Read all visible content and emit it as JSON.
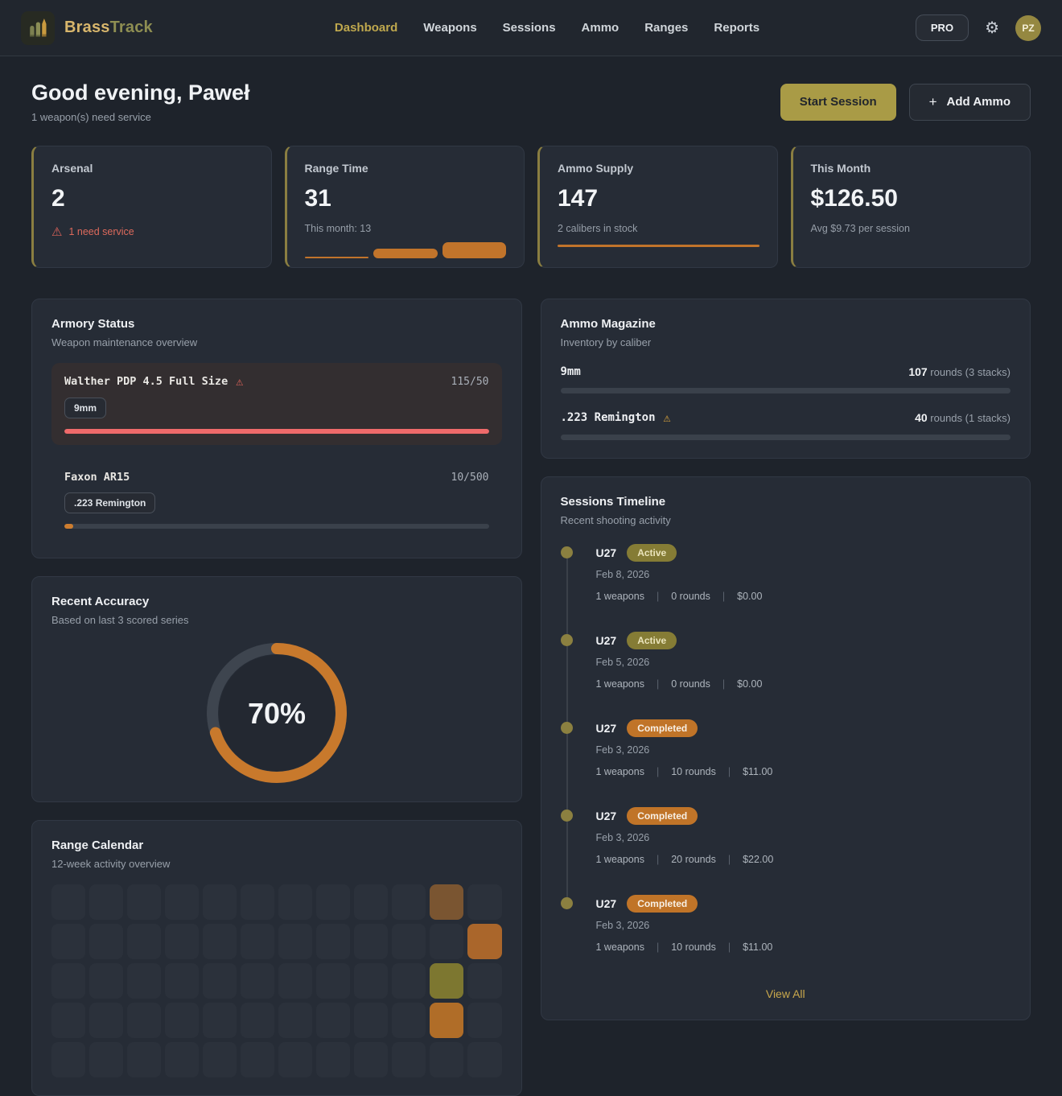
{
  "nav": {
    "brand_bold": "Brass",
    "brand_light": "Track",
    "items": [
      {
        "label": "Dashboard",
        "active": true
      },
      {
        "label": "Weapons",
        "active": false
      },
      {
        "label": "Sessions",
        "active": false
      },
      {
        "label": "Ammo",
        "active": false
      },
      {
        "label": "Ranges",
        "active": false
      },
      {
        "label": "Reports",
        "active": false
      }
    ],
    "pro_label": "PRO",
    "avatar_initials": "PZ"
  },
  "greeting": {
    "title": "Good evening, Paweł",
    "subtitle": "1 weapon(s) need service"
  },
  "actions": {
    "start_session": "Start Session",
    "add_ammo": "Add Ammo",
    "plus_icon": "+"
  },
  "stats": {
    "cards": [
      {
        "label": "Arsenal",
        "value": "2",
        "footer_type": "alert",
        "alert_text": "1 need service"
      },
      {
        "label": "Range Time",
        "value": "31",
        "subtitle": "This month: 13",
        "footer_type": "spark",
        "spark_values": [
          1,
          8,
          13
        ]
      },
      {
        "label": "Ammo Supply",
        "value": "147",
        "subtitle": "2 calibers in stock",
        "footer_type": "line"
      },
      {
        "label": "This Month",
        "value": "$126.50",
        "subtitle": "Avg $9.73 per session",
        "footer_type": "none"
      }
    ]
  },
  "armory": {
    "title": "Armory Status",
    "subtitle": "Weapon maintenance overview",
    "weapons": [
      {
        "name": "Walther PDP 4.5 Full Size",
        "warning": true,
        "ratio": "115/50",
        "caliber": "9mm",
        "fill_pct": 100,
        "fill_color": "#ef6a6a",
        "alert_bg": true
      },
      {
        "name": "Faxon AR15",
        "warning": false,
        "ratio": "10/500",
        "caliber": ".223 Remington",
        "fill_pct": 2,
        "fill_color": "#cd7d2f",
        "alert_bg": false
      }
    ]
  },
  "ammo": {
    "title": "Ammo Magazine",
    "subtitle": "Inventory by caliber",
    "rows": [
      {
        "caliber": "9mm",
        "warning": false,
        "count": "107",
        "count_rest": " rounds (3 stacks)"
      },
      {
        "caliber": ".223 Remington",
        "warning": true,
        "count": "40",
        "count_rest": " rounds (1 stacks)"
      }
    ]
  },
  "accuracy": {
    "title": "Recent Accuracy",
    "subtitle": "Based on last 3 scored series",
    "percent": 70,
    "percent_label": "70%"
  },
  "calendar": {
    "title": "Range Calendar",
    "subtitle": "12-week activity overview",
    "cols": 12,
    "rows": 5,
    "highlights": [
      {
        "row": 0,
        "col": 10,
        "color": "#7a5531"
      },
      {
        "row": 1,
        "col": 11,
        "color": "#aa662b"
      },
      {
        "row": 2,
        "col": 10,
        "color": "#7d7730"
      },
      {
        "row": 3,
        "col": 10,
        "color": "#b06d28"
      }
    ]
  },
  "timeline": {
    "title": "Sessions Timeline",
    "subtitle": "Recent shooting activity",
    "view_all": "View All",
    "sessions": [
      {
        "name": "U27",
        "status": "Active",
        "date": "Feb 8, 2026",
        "weapons": "1 weapons",
        "rounds": "0 rounds",
        "cost": "$0.00"
      },
      {
        "name": "U27",
        "status": "Active",
        "date": "Feb 5, 2026",
        "weapons": "1 weapons",
        "rounds": "0 rounds",
        "cost": "$0.00"
      },
      {
        "name": "U27",
        "status": "Completed",
        "date": "Feb 3, 2026",
        "weapons": "1 weapons",
        "rounds": "10 rounds",
        "cost": "$11.00"
      },
      {
        "name": "U27",
        "status": "Completed",
        "date": "Feb 3, 2026",
        "weapons": "1 weapons",
        "rounds": "20 rounds",
        "cost": "$22.00"
      },
      {
        "name": "U27",
        "status": "Completed",
        "date": "Feb 3, 2026",
        "weapons": "1 weapons",
        "rounds": "10 rounds",
        "cost": "$11.00"
      }
    ]
  },
  "colors": {
    "accent_gold": "#a99b46",
    "accent_orange": "#c1742b",
    "alert_red": "#e0645a",
    "warn_amber": "#d9a33c",
    "donut_track": "#3e454f",
    "cell_default": "#2b313b"
  }
}
